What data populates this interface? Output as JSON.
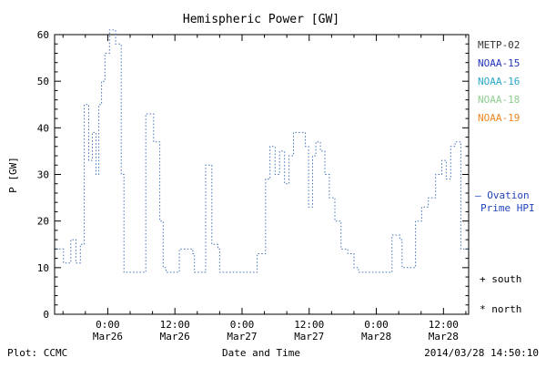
{
  "title": "Hemispheric Power [GW]",
  "ylabel": "P [GW]",
  "xlabel": "Date and Time",
  "footer": {
    "left": "Plot: CCMC",
    "right": "2014/03/28 14:50:10"
  },
  "legend": {
    "satellites": [
      {
        "label": "METP-02",
        "color": "#333333"
      },
      {
        "label": "NOAA-15",
        "color": "#2233bb"
      },
      {
        "label": "NOAA-16",
        "color": "#2aa8c8"
      },
      {
        "label": "NOAA-18",
        "color": "#8fce8f"
      },
      {
        "label": "NOAA-19",
        "color": "#ee8822"
      }
    ],
    "ovation_color": "#2244bb",
    "ovation1": "— Ovation",
    "ovation2": "Prime HPI",
    "south": "+ south",
    "north": "* north"
  },
  "chart_data": {
    "type": "line",
    "style": "step-dotted",
    "title": "Hemispheric Power [GW]",
    "xlabel": "Date and Time",
    "ylabel": "P [GW]",
    "line_color": "#4472b8",
    "ylim": [
      0,
      60
    ],
    "yticks": [
      0,
      10,
      20,
      30,
      40,
      50,
      60
    ],
    "y_minor_step": 2,
    "xlim": [
      -9.5,
      64.5
    ],
    "x_unit": "hours since 2014-03-26 00:00 UT",
    "xticks": [
      {
        "pos": 0,
        "line1": "0:00",
        "line2": "Mar26"
      },
      {
        "pos": 12,
        "line1": "12:00",
        "line2": "Mar26"
      },
      {
        "pos": 24,
        "line1": "0:00",
        "line2": "Mar27"
      },
      {
        "pos": 36,
        "line1": "12:00",
        "line2": "Mar27"
      },
      {
        "pos": 48,
        "line1": "0:00",
        "line2": "Mar28"
      },
      {
        "pos": 60,
        "line1": "12:00",
        "line2": "Mar28"
      }
    ],
    "x_minor_step": 4,
    "x": [
      -9.3,
      -7.9,
      -6.6,
      -5.7,
      -4.9,
      -4.2,
      -3.4,
      -2.75,
      -2.1,
      -1.6,
      -1.1,
      -0.5,
      0.3,
      1.4,
      2.4,
      2.9,
      6.8,
      8.2,
      9.3,
      9.9,
      10.4,
      12.8,
      15.2,
      15.5,
      17.5,
      18.6,
      19.7,
      20.0,
      26.7,
      28.2,
      29.0,
      29.9,
      30.7,
      31.6,
      32.4,
      33.2,
      35.3,
      35.9,
      36.6,
      37.2,
      38.0,
      38.8,
      39.6,
      40.6,
      41.7,
      42.9,
      44.0,
      44.8,
      50.8,
      52.2,
      52.6,
      53.7,
      55.0,
      56.1,
      57.3,
      58.6,
      59.7,
      60.5,
      61.3,
      62.1,
      63.1
    ],
    "y": [
      14,
      11,
      16,
      11,
      15,
      45,
      33,
      39,
      30,
      45,
      50,
      56,
      61,
      58,
      30,
      9,
      43,
      37,
      20,
      10,
      9,
      14,
      13,
      9,
      32,
      15,
      14,
      9,
      13,
      29,
      36,
      30,
      35,
      28,
      34,
      39,
      36,
      23,
      34,
      37,
      35,
      30,
      25,
      20,
      14,
      13,
      10,
      9,
      17,
      16,
      10,
      10,
      20,
      23,
      25,
      30,
      33,
      29,
      36,
      37,
      14
    ]
  }
}
